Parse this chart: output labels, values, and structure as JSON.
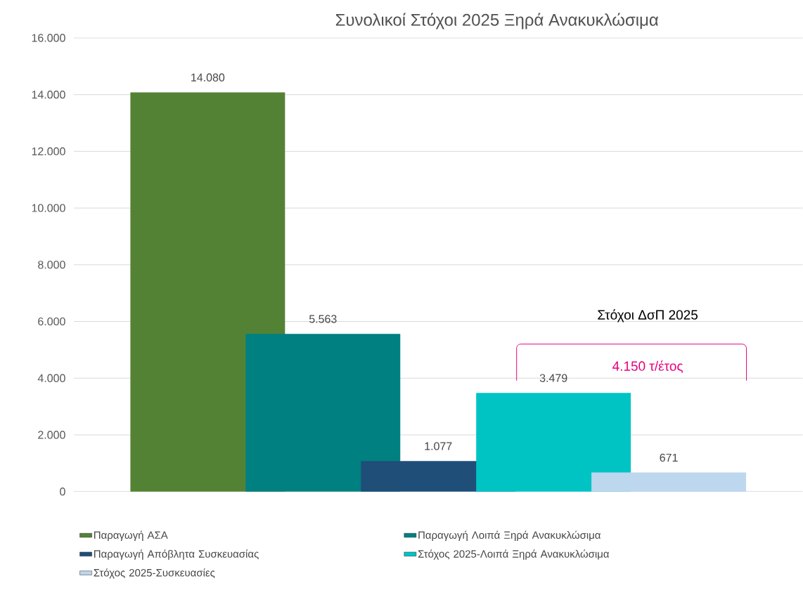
{
  "chart_data": {
    "type": "bar",
    "title": "Συνολικοί Στόχοι 2025 Ξηρά Ανακυκλώσιμα",
    "categories": [
      null
    ],
    "series": [
      {
        "name": "Παραγωγή ΑΣΑ",
        "color": "#548235",
        "values": [
          14080
        ],
        "value_labels": [
          "14.080"
        ]
      },
      {
        "name": "Παραγωγή Λοιπά Ξηρά Ανακυκλώσιμα",
        "color": "#008080",
        "values": [
          5563
        ],
        "value_labels": [
          "5.563"
        ]
      },
      {
        "name": "Παραγωγή Απόβλητα Συσκευασίας",
        "color": "#1f4e79",
        "values": [
          1077
        ],
        "value_labels": [
          "1.077"
        ]
      },
      {
        "name": "Στόχος 2025-Λοιπά Ξηρά Ανακυκλώσιμα",
        "color": "#00c4c4",
        "values": [
          3479
        ],
        "value_labels": [
          "3.479"
        ]
      },
      {
        "name": "Στόχος 2025-Συσκευασίες",
        "color": "#bdd7ee",
        "values": [
          671
        ],
        "value_labels": [
          "671"
        ]
      }
    ],
    "ylim": [
      0,
      16000
    ],
    "yticks": [
      {
        "value": 0,
        "label": "0"
      },
      {
        "value": 2000,
        "label": "2.000"
      },
      {
        "value": 4000,
        "label": "4.000"
      },
      {
        "value": 6000,
        "label": "6.000"
      },
      {
        "value": 8000,
        "label": "8.000"
      },
      {
        "value": 10000,
        "label": "10.000"
      },
      {
        "value": 12000,
        "label": "12.000"
      },
      {
        "value": 14000,
        "label": "14.000"
      },
      {
        "value": 16000,
        "label": "16.000"
      }
    ],
    "grid": "y",
    "legend": "bottom",
    "tick_labels": "y",
    "annotations": [
      "Στόχοι ΔσΠ 2025",
      "4.150 τ/έτος"
    ]
  }
}
